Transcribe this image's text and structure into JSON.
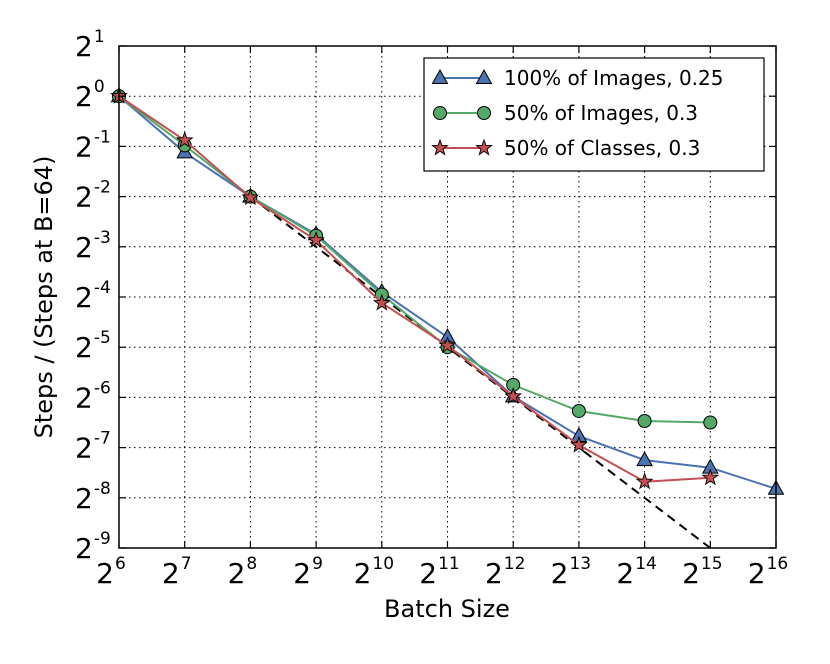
{
  "chart_data": {
    "type": "line",
    "xlabel": "Batch Size",
    "ylabel": "Steps / (Steps at B=64)",
    "x_scale": "log2",
    "y_scale": "log2",
    "xlim_exp": [
      6,
      16
    ],
    "ylim_exp": [
      -9,
      1
    ],
    "x_ticks": [
      {
        "base": "2",
        "exp": "6"
      },
      {
        "base": "2",
        "exp": "7"
      },
      {
        "base": "2",
        "exp": "8"
      },
      {
        "base": "2",
        "exp": "9"
      },
      {
        "base": "2",
        "exp": "10"
      },
      {
        "base": "2",
        "exp": "11"
      },
      {
        "base": "2",
        "exp": "12"
      },
      {
        "base": "2",
        "exp": "13"
      },
      {
        "base": "2",
        "exp": "14"
      },
      {
        "base": "2",
        "exp": "15"
      },
      {
        "base": "2",
        "exp": "16"
      }
    ],
    "y_ticks": [
      {
        "base": "2",
        "exp": "1"
      },
      {
        "base": "2",
        "exp": "0"
      },
      {
        "base": "2",
        "exp": "-1"
      },
      {
        "base": "2",
        "exp": "-2"
      },
      {
        "base": "2",
        "exp": "-3"
      },
      {
        "base": "2",
        "exp": "-4"
      },
      {
        "base": "2",
        "exp": "-5"
      },
      {
        "base": "2",
        "exp": "-6"
      },
      {
        "base": "2",
        "exp": "-7"
      },
      {
        "base": "2",
        "exp": "-8"
      },
      {
        "base": "2",
        "exp": "-9"
      }
    ],
    "grid": true,
    "legend_position": "top-right",
    "reference_line": {
      "style": "dashed",
      "color": "#000000",
      "x_exp": [
        8,
        15
      ],
      "y_exp": [
        -2,
        -9
      ]
    },
    "series": [
      {
        "name": "100% of Images, 0.25",
        "color": "#4c72b0",
        "marker": "triangle",
        "x_exp": [
          6,
          7,
          8,
          9,
          10,
          11,
          12,
          13,
          14,
          15,
          16
        ],
        "y_exp": [
          0,
          -1.12,
          -2.0,
          -2.75,
          -3.9,
          -4.8,
          -5.98,
          -6.77,
          -7.25,
          -7.4,
          -7.82
        ]
      },
      {
        "name": "50% of Images, 0.3",
        "color": "#55a868",
        "marker": "circle",
        "x_exp": [
          6,
          7,
          8,
          9,
          10,
          11,
          12,
          13,
          14,
          15
        ],
        "y_exp": [
          0,
          -0.98,
          -2.0,
          -2.78,
          -3.95,
          -5.0,
          -5.75,
          -6.27,
          -6.47,
          -6.5
        ]
      },
      {
        "name": "50% of Classes, 0.3",
        "color": "#c44e52",
        "marker": "star",
        "x_exp": [
          6,
          7,
          8,
          9,
          10,
          11,
          12,
          13,
          14,
          15
        ],
        "y_exp": [
          0,
          -0.88,
          -2.02,
          -2.87,
          -4.12,
          -4.97,
          -5.98,
          -6.95,
          -7.68,
          -7.6
        ]
      }
    ]
  }
}
